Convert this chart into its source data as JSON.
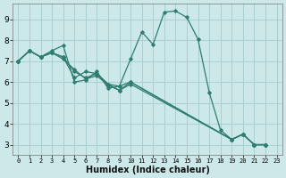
{
  "xlabel": "Humidex (Indice chaleur)",
  "background_color": "#cce8e8",
  "line_color": "#2e7d6e",
  "grid_color": "#aacfcf",
  "xlim": [
    -0.5,
    23.5
  ],
  "ylim": [
    2.5,
    9.75
  ],
  "xtick_vals": [
    0,
    1,
    2,
    3,
    4,
    5,
    6,
    7,
    8,
    9,
    10,
    11,
    12,
    13,
    14,
    15,
    16,
    17,
    18,
    19,
    20,
    21,
    22,
    23
  ],
  "ytick_vals": [
    3,
    4,
    5,
    6,
    7,
    8,
    9
  ],
  "lines": [
    {
      "x": [
        0,
        1,
        2,
        3,
        4,
        5,
        6,
        7,
        8,
        9,
        10,
        11,
        12,
        13,
        14,
        15,
        16,
        17,
        18,
        19,
        20,
        21,
        22
      ],
      "y": [
        7.0,
        7.5,
        7.2,
        7.5,
        7.75,
        6.0,
        6.1,
        6.5,
        5.7,
        5.8,
        7.1,
        8.4,
        7.8,
        9.35,
        9.4,
        9.1,
        8.05,
        5.5,
        3.7,
        3.25,
        3.5,
        3.0,
        3.0
      ]
    },
    {
      "x": [
        0,
        1,
        2,
        3,
        4,
        5,
        6,
        7,
        8,
        9,
        10,
        19,
        20,
        21,
        22
      ],
      "y": [
        7.0,
        7.5,
        7.2,
        7.4,
        7.2,
        6.2,
        6.5,
        6.4,
        5.9,
        5.8,
        6.0,
        3.25,
        3.5,
        3.0,
        3.0
      ]
    },
    {
      "x": [
        0,
        1,
        2,
        3,
        4,
        5,
        6,
        7,
        8,
        9,
        10,
        19,
        20,
        21,
        22
      ],
      "y": [
        7.0,
        7.5,
        7.2,
        7.4,
        7.2,
        6.5,
        6.2,
        6.4,
        5.9,
        5.6,
        6.0,
        3.25,
        3.5,
        3.0,
        3.0
      ]
    },
    {
      "x": [
        0,
        1,
        2,
        3,
        4,
        5,
        6,
        7,
        8,
        9,
        10,
        19,
        20,
        21,
        22
      ],
      "y": [
        7.0,
        7.5,
        7.2,
        7.4,
        7.1,
        6.6,
        6.15,
        6.3,
        5.85,
        5.6,
        5.9,
        3.25,
        3.5,
        3.0,
        3.0
      ]
    }
  ]
}
